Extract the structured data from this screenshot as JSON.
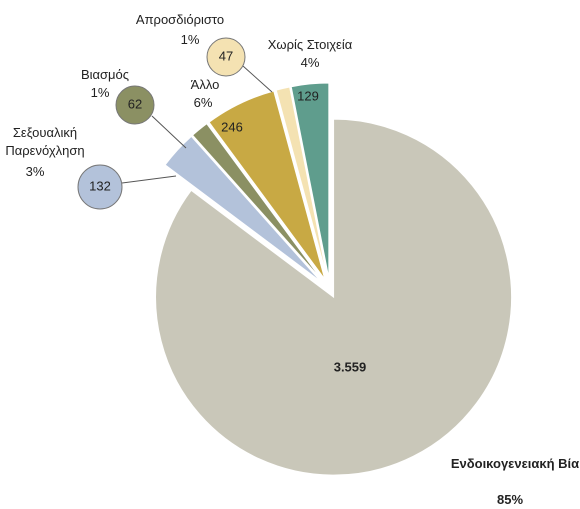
{
  "chart_data": {
    "type": "pie",
    "categories": [
      "Ενδοικογενειακή Βία",
      "Σεξουαλική Παρενόχληση",
      "Βιασμός",
      "Άλλο",
      "Απροσδιόριστο",
      "Χωρίς Στοιχεία"
    ],
    "values": [
      3559,
      132,
      62,
      246,
      47,
      129
    ],
    "value_labels": [
      "3.559",
      "132",
      "62",
      "246",
      "47",
      "129"
    ],
    "percent_labels": [
      "85%",
      "3%",
      "1%",
      "6%",
      "1%",
      "4%"
    ],
    "colors": [
      "#c9c7b9",
      "#b3c2da",
      "#8b9063",
      "#c8a944",
      "#f4e2b2",
      "#5f9d8d"
    ]
  }
}
